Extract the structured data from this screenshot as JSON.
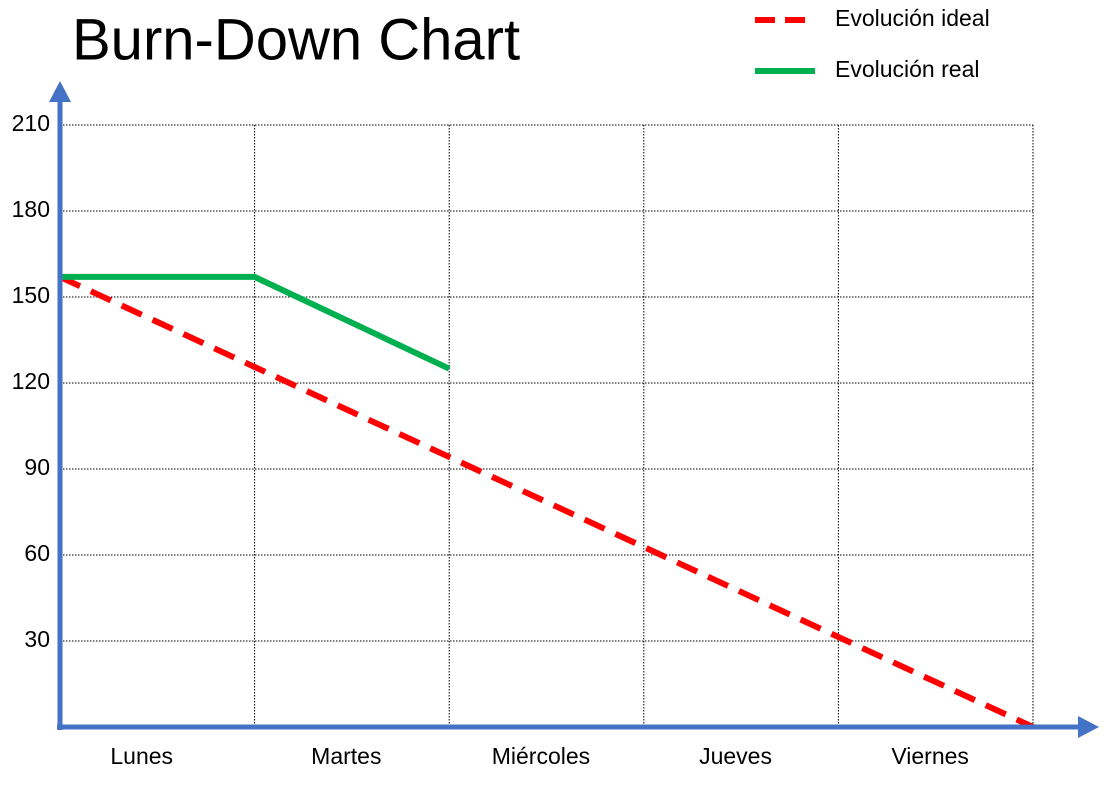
{
  "chart_data": {
    "type": "line",
    "title": "Burn-Down Chart",
    "categories": [
      "Lunes",
      "Martes",
      "Miércoles",
      "Jueves",
      "Viernes"
    ],
    "x": [
      0,
      1,
      2,
      3,
      4,
      5
    ],
    "xlim": [
      0,
      5
    ],
    "series": [
      {
        "name": "Evolución ideal",
        "color": "#ff0000",
        "dashed": true,
        "values": [
          157,
          125.6,
          94.2,
          62.8,
          31.4,
          0
        ]
      },
      {
        "name": "Evolución real",
        "color": "#00b050",
        "dashed": false,
        "values": [
          157,
          157,
          125,
          null,
          null,
          null
        ]
      }
    ],
    "ylim": [
      0,
      210
    ],
    "yticks": [
      30,
      60,
      90,
      120,
      150,
      180,
      210
    ],
    "grid": true,
    "axis_color": "#4472c4"
  }
}
